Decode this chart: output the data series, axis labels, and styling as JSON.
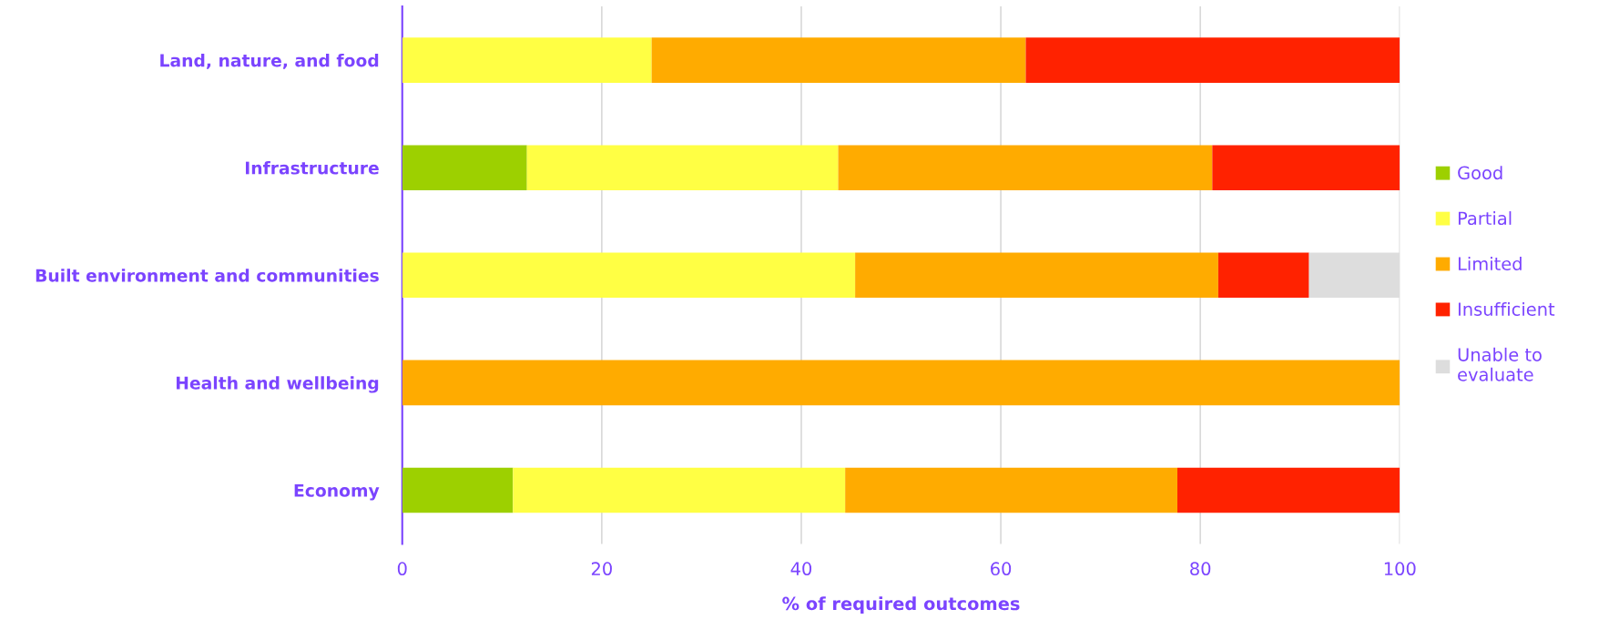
{
  "chart_data": {
    "type": "bar",
    "orientation": "horizontal",
    "stacked": true,
    "xlabel": "% of required outcomes",
    "categories": [
      "Land, nature, and food",
      "Infrastructure",
      "Built environment and communities",
      "Health and wellbeing",
      "Economy"
    ],
    "series": [
      {
        "name": "Good",
        "color": "#9dd000",
        "values": [
          0,
          12.5,
          0,
          0,
          11.1
        ]
      },
      {
        "name": "Partial",
        "color": "#ffff44",
        "values": [
          25,
          31.2,
          45.4,
          0,
          33.3
        ]
      },
      {
        "name": "Limited",
        "color": "#ffab00",
        "values": [
          37.5,
          37.5,
          36.4,
          100,
          33.3
        ]
      },
      {
        "name": "Insufficient",
        "color": "#ff2200",
        "values": [
          37.5,
          18.8,
          9.1,
          0,
          22.3
        ]
      },
      {
        "name": "Unable to\nevaluate",
        "color": "#dddddd",
        "values": [
          0,
          0,
          9.1,
          0,
          0
        ]
      }
    ],
    "xlim": [
      0,
      100
    ],
    "xticks": [
      0,
      20,
      40,
      60,
      80,
      100
    ],
    "grid": "x",
    "legend": "right"
  }
}
